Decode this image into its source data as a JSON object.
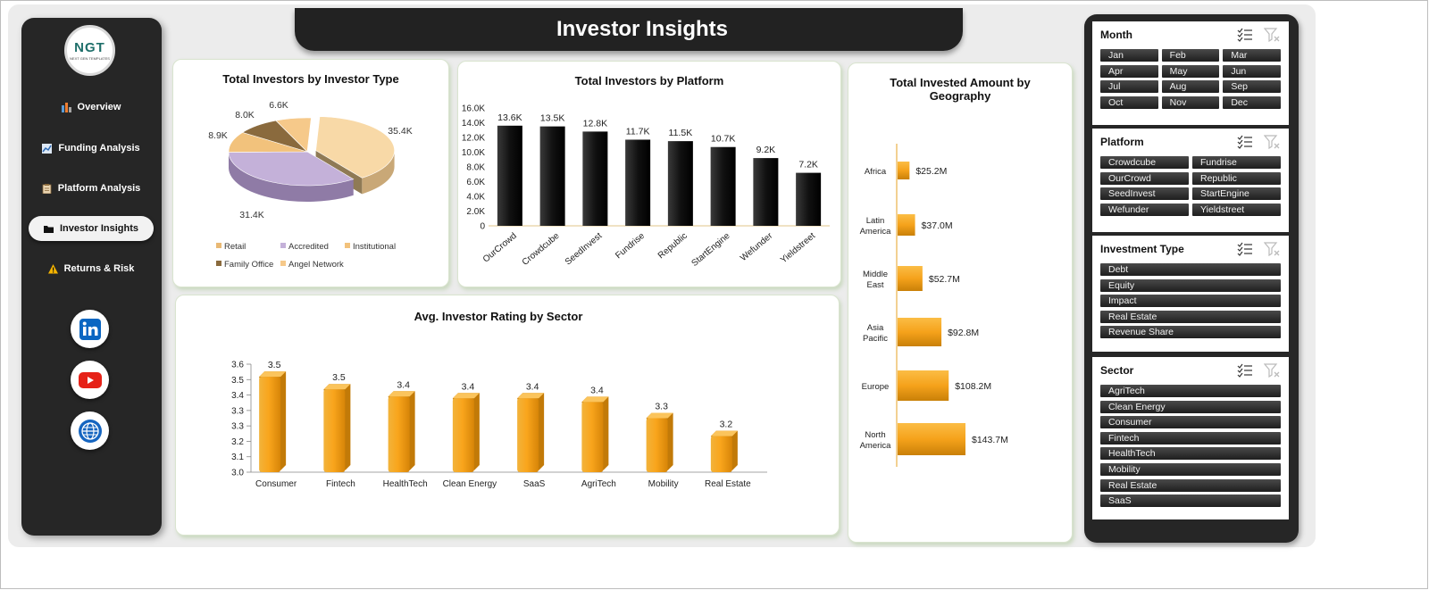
{
  "title": "Investor Insights",
  "logo": {
    "text": "NGT",
    "subtext": "NEXT GEN TEMPLATES"
  },
  "nav": [
    {
      "label": "Overview",
      "icon": "bar-chart-icon",
      "active": false
    },
    {
      "label": "Funding Analysis",
      "icon": "line-chart-icon",
      "active": false
    },
    {
      "label": "Platform Analysis",
      "icon": "clipboard-icon",
      "active": false
    },
    {
      "label": "Investor Insights",
      "icon": "folder-icon",
      "active": true
    },
    {
      "label": "Returns & Risk",
      "icon": "warning-icon",
      "active": false
    }
  ],
  "social": [
    "linkedin-icon",
    "youtube-icon",
    "globe-icon"
  ],
  "colors": {
    "dark": "#262626",
    "gold": "#f5a623",
    "bar_dark": "#1a1a1a",
    "pie": [
      "#f8d9a7",
      "#c4b1d9",
      "#f2c27c",
      "#8a6a3d",
      "#f6c98a"
    ]
  },
  "charts": {
    "investor_type": {
      "title": "Total Investors by Investor Type",
      "chart_data": {
        "type": "pie",
        "title": "Total Investors by Investor Type",
        "categories": [
          "Retail",
          "Accredited",
          "Institutional",
          "Family Office",
          "Angel Network"
        ],
        "values": [
          35.4,
          31.4,
          8.9,
          8.0,
          6.6
        ],
        "labels": [
          "35.4K",
          "31.4K",
          "8.9K",
          "8.0K",
          "6.6K"
        ],
        "legend": "bottom"
      }
    },
    "platform": {
      "title": "Total Investors by Platform",
      "chart_data": {
        "type": "bar",
        "title": "Total Investors by Platform",
        "categories": [
          "OurCrowd",
          "Crowdcube",
          "SeedInvest",
          "Fundrise",
          "Republic",
          "StartEngine",
          "Wefunder",
          "Yieldstreet"
        ],
        "values": [
          13.6,
          13.5,
          12.8,
          11.7,
          11.5,
          10.7,
          9.2,
          7.2
        ],
        "labels": [
          "13.6K",
          "13.5K",
          "12.8K",
          "11.7K",
          "11.5K",
          "10.7K",
          "9.2K",
          "7.2K"
        ],
        "yticks": [
          "0",
          "2.0K",
          "4.0K",
          "6.0K",
          "8.0K",
          "10.0K",
          "12.0K",
          "14.0K",
          "16.0K"
        ],
        "ylim": [
          0,
          16
        ]
      }
    },
    "sector": {
      "title": "Avg. Investor Rating by Sector",
      "chart_data": {
        "type": "bar",
        "title": "Avg. Investor Rating by Sector",
        "categories": [
          "Consumer",
          "Fintech",
          "HealthTech",
          "Clean Energy",
          "SaaS",
          "AgriTech",
          "Mobility",
          "Real Estate"
        ],
        "values": [
          3.55,
          3.48,
          3.44,
          3.43,
          3.43,
          3.41,
          3.32,
          3.22
        ],
        "labels": [
          "3.5",
          "3.5",
          "3.4",
          "3.4",
          "3.4",
          "3.4",
          "3.3",
          "3.2"
        ],
        "yticks": [
          "3.0",
          "3.1",
          "3.2",
          "3.3",
          "3.3",
          "3.4",
          "3.5",
          "3.6"
        ],
        "ylim": [
          3.0,
          3.6
        ]
      }
    },
    "geography": {
      "title": "Total Invested Amount by Geography",
      "chart_data": {
        "type": "bar",
        "orientation": "horizontal",
        "title": "Total Invested Amount by Geography",
        "categories": [
          "Africa",
          "Latin America",
          "Middle East",
          "Asia Pacific",
          "Europe",
          "North America"
        ],
        "values": [
          25.2,
          37.0,
          52.7,
          92.8,
          108.2,
          143.7
        ],
        "labels": [
          "$25.2M",
          "$37.0M",
          "$52.7M",
          "$92.8M",
          "$108.2M",
          "$143.7M"
        ]
      }
    }
  },
  "slicers": [
    {
      "title": "Month",
      "columns": 3,
      "items": [
        "Jan",
        "Feb",
        "Mar",
        "Apr",
        "May",
        "Jun",
        "Jul",
        "Aug",
        "Sep",
        "Oct",
        "Nov",
        "Dec"
      ]
    },
    {
      "title": "Platform",
      "columns": 2,
      "items": [
        "Crowdcube",
        "Fundrise",
        "OurCrowd",
        "Republic",
        "SeedInvest",
        "StartEngine",
        "Wefunder",
        "Yieldstreet"
      ]
    },
    {
      "title": "Investment Type",
      "columns": 1,
      "items": [
        "Debt",
        "Equity",
        "Impact",
        "Real Estate",
        "Revenue Share"
      ]
    },
    {
      "title": "Sector",
      "columns": 1,
      "items": [
        "AgriTech",
        "Clean Energy",
        "Consumer",
        "Fintech",
        "HealthTech",
        "Mobility",
        "Real Estate",
        "SaaS"
      ]
    }
  ]
}
